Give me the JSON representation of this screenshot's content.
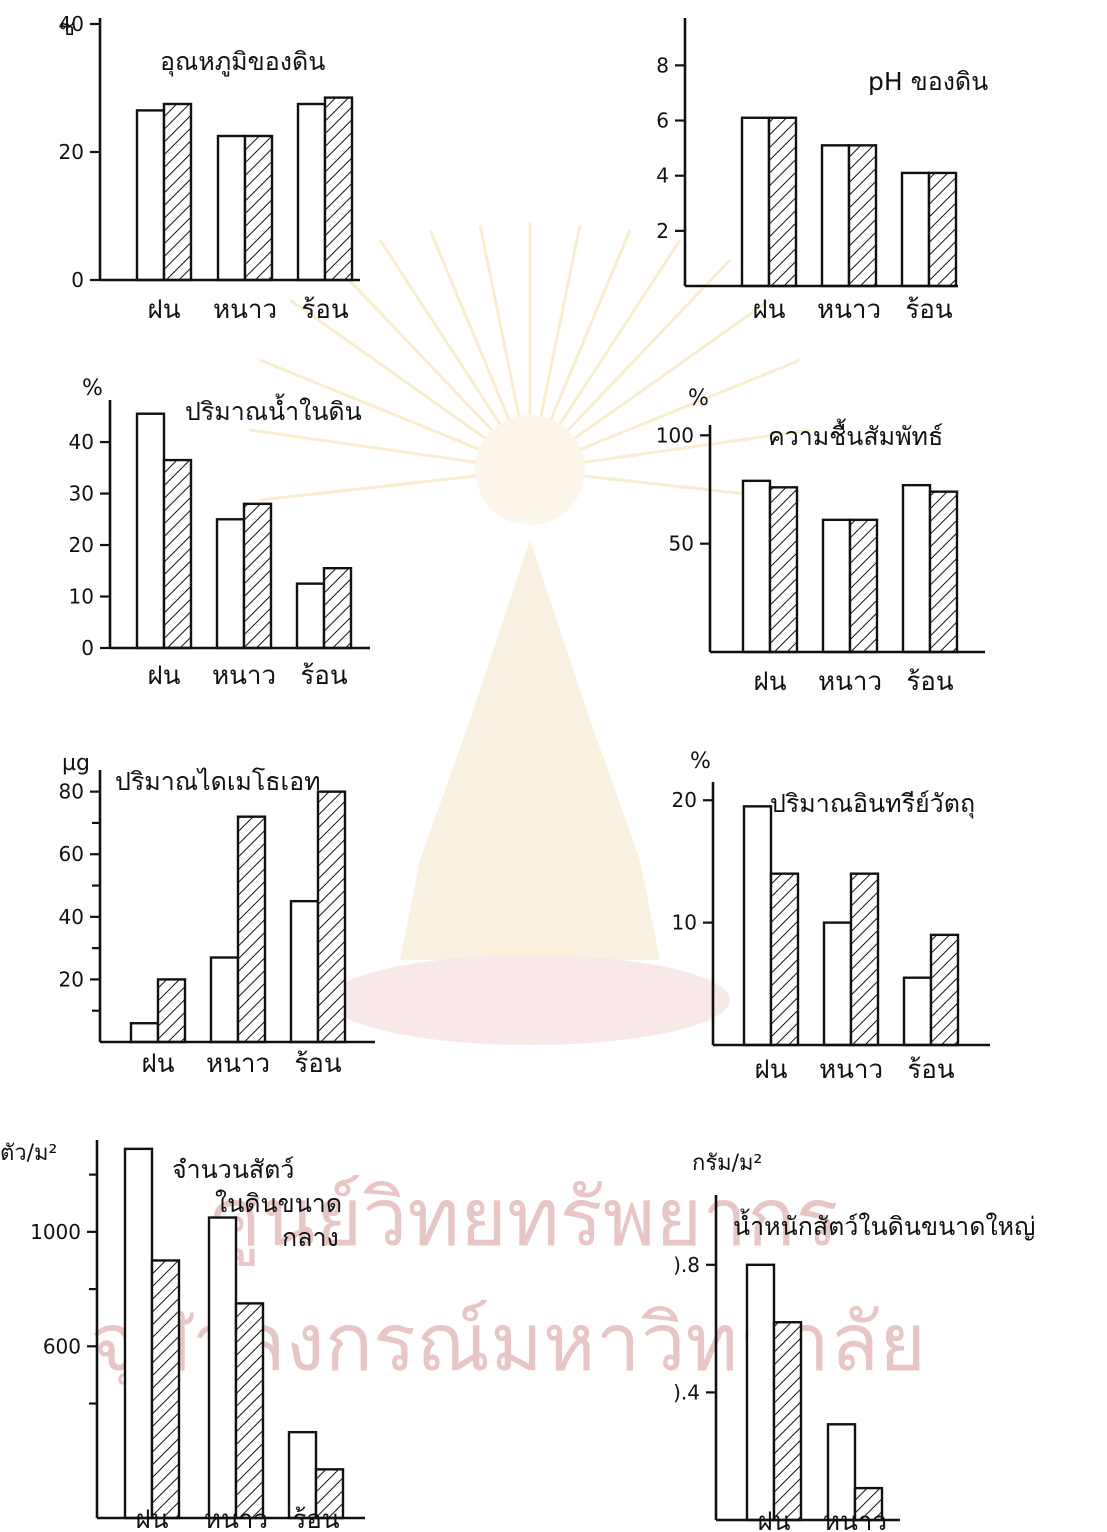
{
  "watermark": {
    "line1": "ศูนย์วิทยทรัพยากร",
    "line2": "จุฬาลงกรณ์มหาวิทยาลัย",
    "seal": "chulalongkorn-university-seal"
  },
  "legend": {
    "open_bar_style": "open",
    "hatched_bar_style": "hatched"
  },
  "chart_data": [
    {
      "type": "bar",
      "title": "อุณหภูมิของดิน",
      "unit": "ซ",
      "ylim": [
        0,
        40
      ],
      "yticks": [
        0,
        20,
        40
      ],
      "ytick_labels": [
        "0",
        "20",
        "40"
      ],
      "minor_ticks": [],
      "categories": [
        "ฝน",
        "หนาว",
        "ร้อน"
      ],
      "series": [
        {
          "style": "open",
          "values": [
            26.5,
            22.5,
            27.5
          ]
        },
        {
          "style": "hatched",
          "values": [
            27.5,
            22.5,
            28.5
          ]
        }
      ]
    },
    {
      "type": "bar",
      "title": "pH ของดิน",
      "unit": "",
      "ylim": [
        0,
        9.5
      ],
      "yticks": [
        2,
        4,
        6,
        8
      ],
      "ytick_labels": [
        "2",
        "4",
        "6",
        "8"
      ],
      "minor_ticks": [],
      "categories": [
        "ฝน",
        "หนาว",
        "ร้อน"
      ],
      "series": [
        {
          "style": "open",
          "values": [
            6.1,
            5.1,
            4.1
          ]
        },
        {
          "style": "hatched",
          "values": [
            6.1,
            5.1,
            4.1
          ]
        }
      ]
    },
    {
      "type": "bar",
      "title": "ปริมาณน้ำในดิน",
      "unit": "%",
      "ylim": [
        0,
        47
      ],
      "yticks": [
        0,
        10,
        20,
        30,
        40
      ],
      "ytick_labels": [
        "0",
        "10",
        "20",
        "30",
        "40"
      ],
      "minor_ticks": [],
      "categories": [
        "ฝน",
        "หนาว",
        "ร้อน"
      ],
      "series": [
        {
          "style": "open",
          "values": [
            45.5,
            25,
            12.5
          ]
        },
        {
          "style": "hatched",
          "values": [
            36.5,
            28,
            15.5
          ]
        }
      ]
    },
    {
      "type": "bar",
      "title": "ความชื้นสัมพัทธ์",
      "unit": "%",
      "ylim": [
        0,
        102
      ],
      "yticks": [
        50,
        100
      ],
      "ytick_labels": [
        "50",
        "100"
      ],
      "minor_ticks": [],
      "categories": [
        "ฝน",
        "หนาว",
        "ร้อน"
      ],
      "series": [
        {
          "style": "open",
          "values": [
            79,
            61,
            77
          ]
        },
        {
          "style": "hatched",
          "values": [
            76,
            61,
            74
          ]
        }
      ]
    },
    {
      "type": "bar",
      "title": "ปริมาณไดเมโธเอท",
      "unit": "µg",
      "ylim": [
        0,
        85
      ],
      "yticks": [
        20,
        40,
        60,
        80
      ],
      "ytick_labels": [
        "20",
        "40",
        "60",
        "80"
      ],
      "minor_ticks": [
        10,
        30,
        50,
        70
      ],
      "categories": [
        "ฝน",
        "หนาว",
        "ร้อน"
      ],
      "series": [
        {
          "style": "open",
          "values": [
            6,
            27,
            45
          ]
        },
        {
          "style": "hatched",
          "values": [
            20,
            72,
            80
          ]
        }
      ]
    },
    {
      "type": "bar",
      "title": "ปริมาณอินทรีย์วัตถุ",
      "unit": "%",
      "ylim": [
        0,
        21
      ],
      "yticks": [
        10,
        20
      ],
      "ytick_labels": [
        "10",
        "20"
      ],
      "minor_ticks": [],
      "categories": [
        "ฝน",
        "หนาว",
        "ร้อน"
      ],
      "series": [
        {
          "style": "open",
          "values": [
            19.5,
            10,
            5.5
          ]
        },
        {
          "style": "hatched",
          "values": [
            14,
            14,
            9
          ]
        }
      ]
    },
    {
      "type": "bar",
      "title_lines": [
        "จำนวนสัตว์",
        "ในดินขนาด",
        "กลาง"
      ],
      "unit": "ตัว/ม²",
      "ylim": [
        0,
        1300
      ],
      "yticks": [
        600,
        1000
      ],
      "ytick_labels": [
        "600",
        "1000"
      ],
      "minor_ticks": [
        400,
        800,
        1200
      ],
      "categories": [
        "ฝน",
        "หนาว",
        "ร้อน"
      ],
      "series": [
        {
          "style": "open",
          "values": [
            1290,
            1050,
            300
          ]
        },
        {
          "style": "hatched",
          "values": [
            900,
            750,
            170
          ]
        }
      ]
    },
    {
      "type": "bar",
      "title": "น้ำหนักสัตว์ในดินขนาดใหญ่",
      "unit": "กรัม/ม²",
      "ylim": [
        0,
        1.0
      ],
      "yticks": [
        0.4,
        0.8
      ],
      "ytick_labels": [
        ").4",
        ").8"
      ],
      "minor_ticks": [],
      "categories": [
        "ฝน",
        "หนาว"
      ],
      "series": [
        {
          "style": "open",
          "values": [
            0.8,
            0.3
          ]
        },
        {
          "style": "hatched",
          "values": [
            0.62,
            0.1
          ]
        }
      ]
    }
  ]
}
